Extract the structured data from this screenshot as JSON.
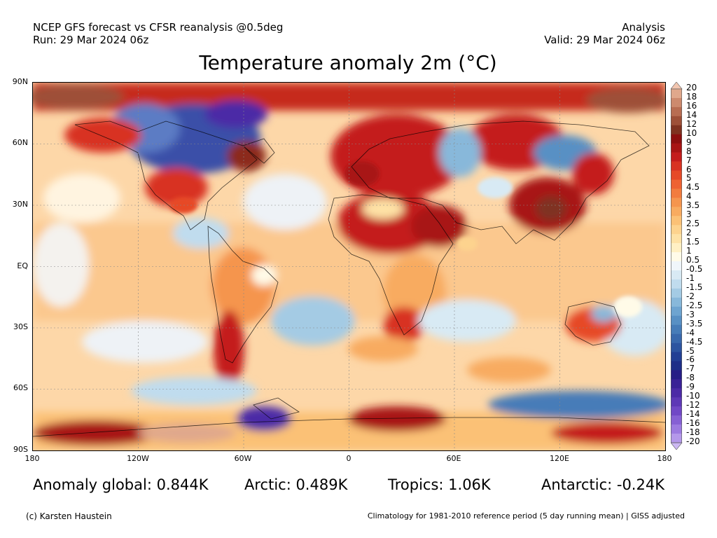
{
  "header": {
    "left_line1": "NCEP GFS forecast vs CFSR reanalysis @0.5deg",
    "left_line2": "Run: 29 Mar 2024 06z",
    "right_line1": "Analysis",
    "right_line2": "Valid: 29 Mar 2024 06z"
  },
  "title": "Temperature anomaly 2m (°C)",
  "map": {
    "lat_labels": [
      "90N",
      "60N",
      "30N",
      "EQ",
      "30S",
      "60S",
      "90S"
    ],
    "lon_labels": [
      "180",
      "120W",
      "60W",
      "0",
      "60E",
      "120E",
      "180"
    ]
  },
  "colorbar": {
    "labels": [
      "20",
      "18",
      "16",
      "14",
      "12",
      "10",
      "9",
      "8",
      "7",
      "6",
      "5",
      "4.5",
      "4",
      "3.5",
      "3",
      "2.5",
      "2",
      "1.5",
      "1",
      "0.5",
      "-0.5",
      "-1",
      "-1.5",
      "-2",
      "-2.5",
      "-3",
      "-3.5",
      "-4",
      "-4.5",
      "-5",
      "-6",
      "-7",
      "-8",
      "-9",
      "-10",
      "-12",
      "-14",
      "-16",
      "-18",
      "-20"
    ],
    "colors": [
      "#f2c6b0",
      "#e0a88c",
      "#cd8a6e",
      "#b86d52",
      "#9e5038",
      "#7f3220",
      "#8c0f0f",
      "#a81414",
      "#c41c1c",
      "#d83222",
      "#e64a28",
      "#ee6232",
      "#f27c3e",
      "#f5954e",
      "#f8ab60",
      "#fbc176",
      "#fdd38e",
      "#fee2a6",
      "#fff0c4",
      "#fffbe8",
      "#f0f6fa",
      "#d8eaf4",
      "#c0dcee",
      "#a4cbe4",
      "#88b8da",
      "#6ea4d0",
      "#5890c4",
      "#467cb8",
      "#3868ac",
      "#2c54a0",
      "#223f94",
      "#1e2e88",
      "#271d86",
      "#3a2196",
      "#4c2aa6",
      "#5e38b6",
      "#7148c6",
      "#8660d4",
      "#9c7ae0",
      "#b498ea",
      "#ccb8f2"
    ]
  },
  "stats": {
    "global": "Anomaly global: 0.844K",
    "arctic": "Arctic: 0.489K",
    "tropics": "Tropics: 1.06K",
    "antarctic": "Antarctic: -0.24K"
  },
  "footer": {
    "left": "(c) Karsten Haustein",
    "right": "Climatology for 1981-2010 reference period (5 day running mean) | GISS adjusted"
  }
}
